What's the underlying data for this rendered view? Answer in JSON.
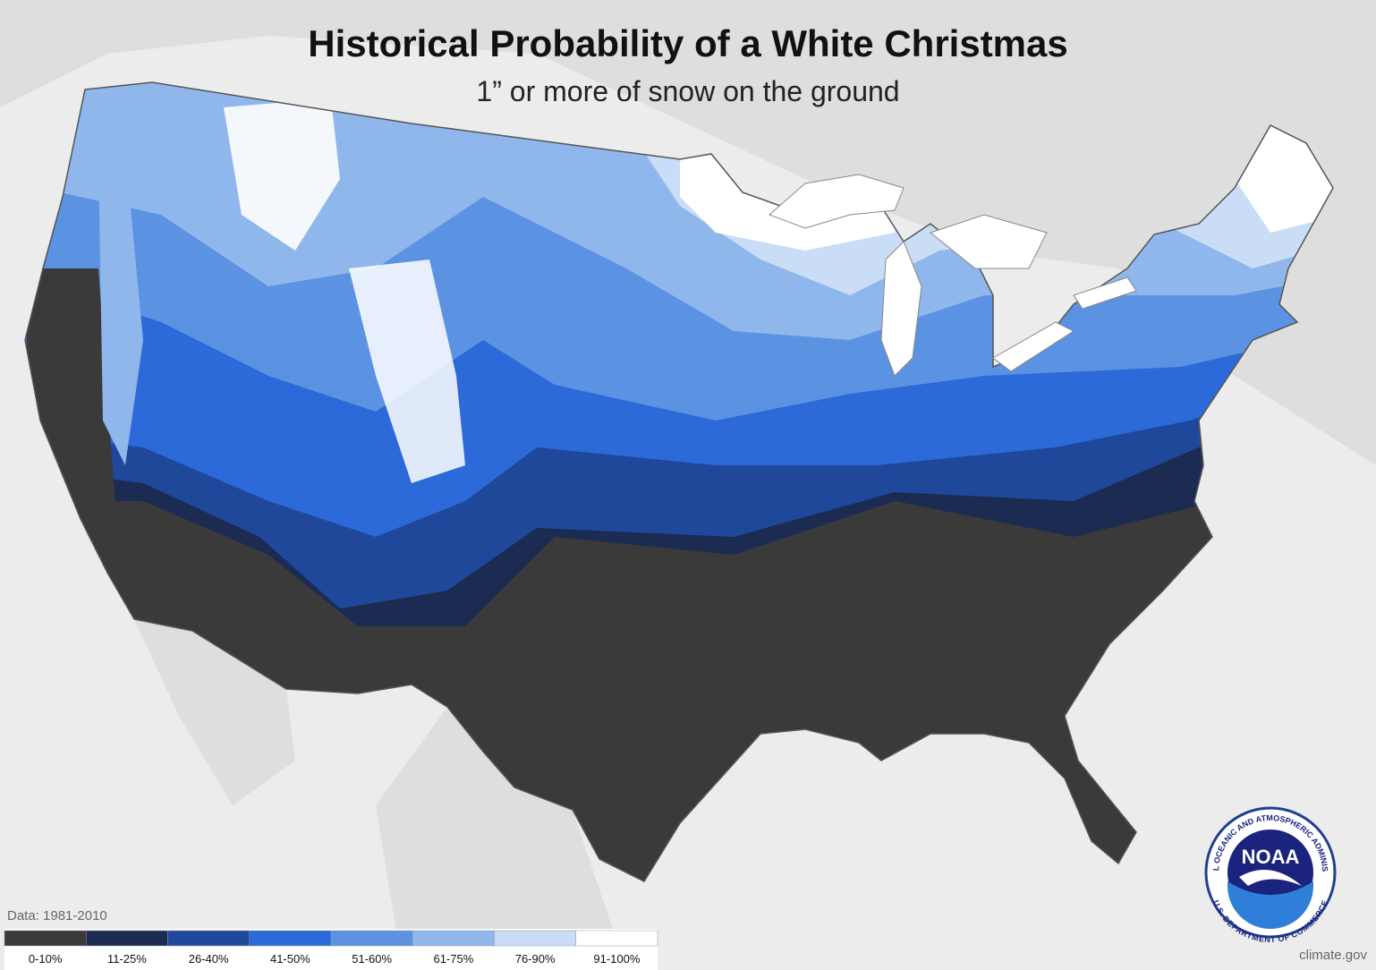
{
  "title": "Historical Probability of a White Christmas",
  "subtitle": "1” or more of snow on the ground",
  "data_note": "Data: 1981-2010",
  "legend": {
    "items": [
      {
        "label": "0-10%",
        "color": "#3a3a3a"
      },
      {
        "label": "11-25%",
        "color": "#1b2b52"
      },
      {
        "label": "26-40%",
        "color": "#1f479a"
      },
      {
        "label": "41-50%",
        "color": "#2b6ad8"
      },
      {
        "label": "51-60%",
        "color": "#5b93e2"
      },
      {
        "label": "61-75%",
        "color": "#8fb7ec"
      },
      {
        "label": "76-90%",
        "color": "#c9ddf6"
      },
      {
        "label": "91-100%",
        "color": "#ffffff"
      }
    ]
  },
  "credit": "climate.gov",
  "logo": {
    "text": "NOAA",
    "ring_top": "NATIONAL OCEANIC AND ATMOSPHERIC ADMINISTRATION",
    "ring_bottom": "U.S. DEPARTMENT OF COMMERCE"
  }
}
